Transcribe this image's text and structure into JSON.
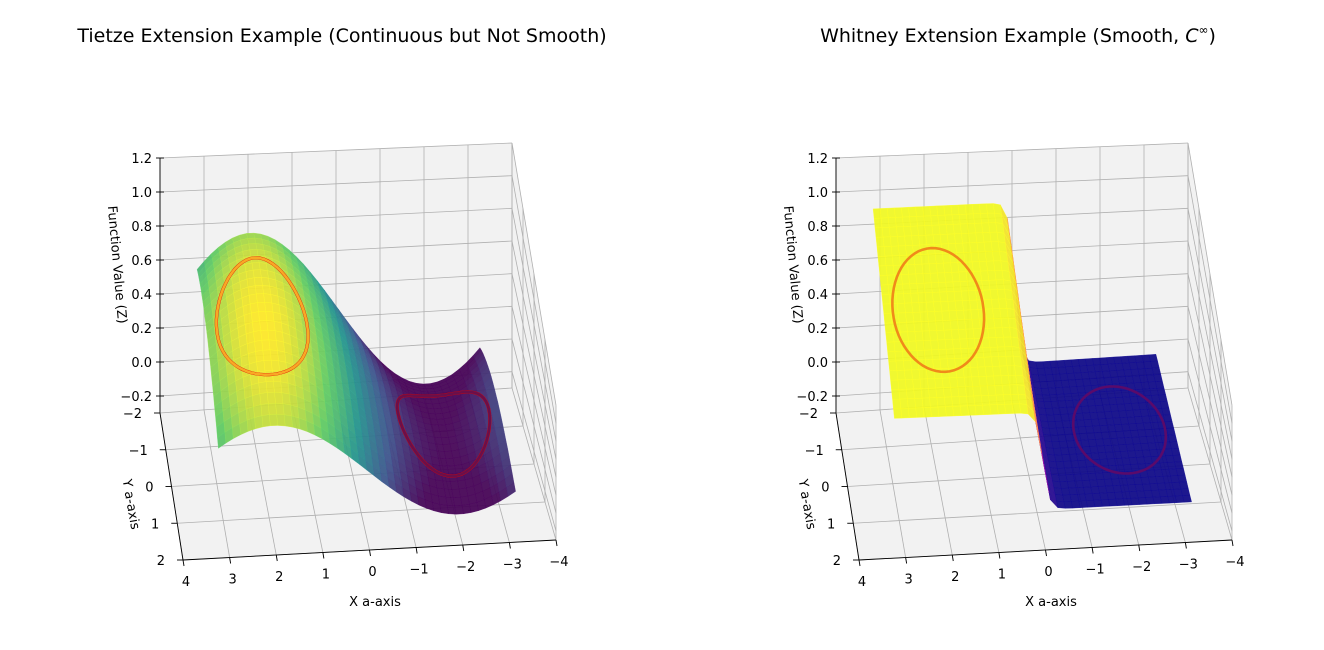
{
  "colors": {
    "viridis": [
      "#440154",
      "#3b528b",
      "#21918c",
      "#5ec962",
      "#fde725"
    ],
    "plasma": [
      "#0d0887",
      "#7e03a8",
      "#cc4778",
      "#f89540",
      "#f0f921"
    ],
    "ring_edge": "#e00000",
    "pane": "#f2f2f2",
    "grid": "#b0b0b0"
  },
  "chart_data": [
    {
      "type": "surface3d",
      "title": "Tietze Extension Example (Continuous but Not Smooth)",
      "xlabel": "X a-axis",
      "ylabel": "Y a-axis",
      "zlabel": "Function Value (Z)",
      "xlim": [
        -4,
        4
      ],
      "ylim": [
        -2,
        2
      ],
      "zlim": [
        -0.3,
        1.2
      ],
      "xticks": [
        "4",
        "3",
        "2",
        "1",
        "0",
        "−1",
        "−2",
        "−3",
        "−4"
      ],
      "yticks": [
        "−2",
        "−1",
        "0",
        "1",
        "2"
      ],
      "zticks": [
        "1.2",
        "1.0",
        "0.8",
        "0.6",
        "0.4",
        "0.2",
        "0.0",
        "−0.2"
      ],
      "colormap": "viridis",
      "surface": "smooth saddle interpolating 1 on the left circle and 0 on the right circle",
      "constraint_sets": [
        {
          "name": "circle A",
          "center_x": 2,
          "center_y": 0,
          "radius": 1,
          "value": 1
        },
        {
          "name": "circle B",
          "center_x": -2,
          "center_y": 0,
          "radius": 1,
          "value": 0
        }
      ]
    },
    {
      "type": "surface3d",
      "title": "Whitney Extension Example (Smooth, ",
      "title_math": "C",
      "title_sup": "∞",
      "title_end": ")",
      "xlabel": "X a-axis",
      "ylabel": "Y a-axis",
      "zlabel": "Function Value (Z)",
      "xlim": [
        -4,
        4
      ],
      "ylim": [
        -2,
        2
      ],
      "zlim": [
        -0.3,
        1.2
      ],
      "xticks": [
        "4",
        "3",
        "2",
        "1",
        "0",
        "−1",
        "−2",
        "−3",
        "−4"
      ],
      "yticks": [
        "−2",
        "−1",
        "0",
        "1",
        "2"
      ],
      "zticks": [
        "1.2",
        "1.0",
        "0.8",
        "0.6",
        "0.4",
        "0.2",
        "0.0",
        "−0.2"
      ],
      "colormap": "plasma",
      "surface": "plateau at 1 for x > 0, sharp smooth step to 0 for x < 0",
      "constraint_sets": [
        {
          "name": "circle A",
          "center_x": 2,
          "center_y": 0,
          "radius": 1,
          "value": 1
        },
        {
          "name": "circle B",
          "center_x": -2,
          "center_y": 0,
          "radius": 1,
          "value": 0
        }
      ]
    }
  ]
}
